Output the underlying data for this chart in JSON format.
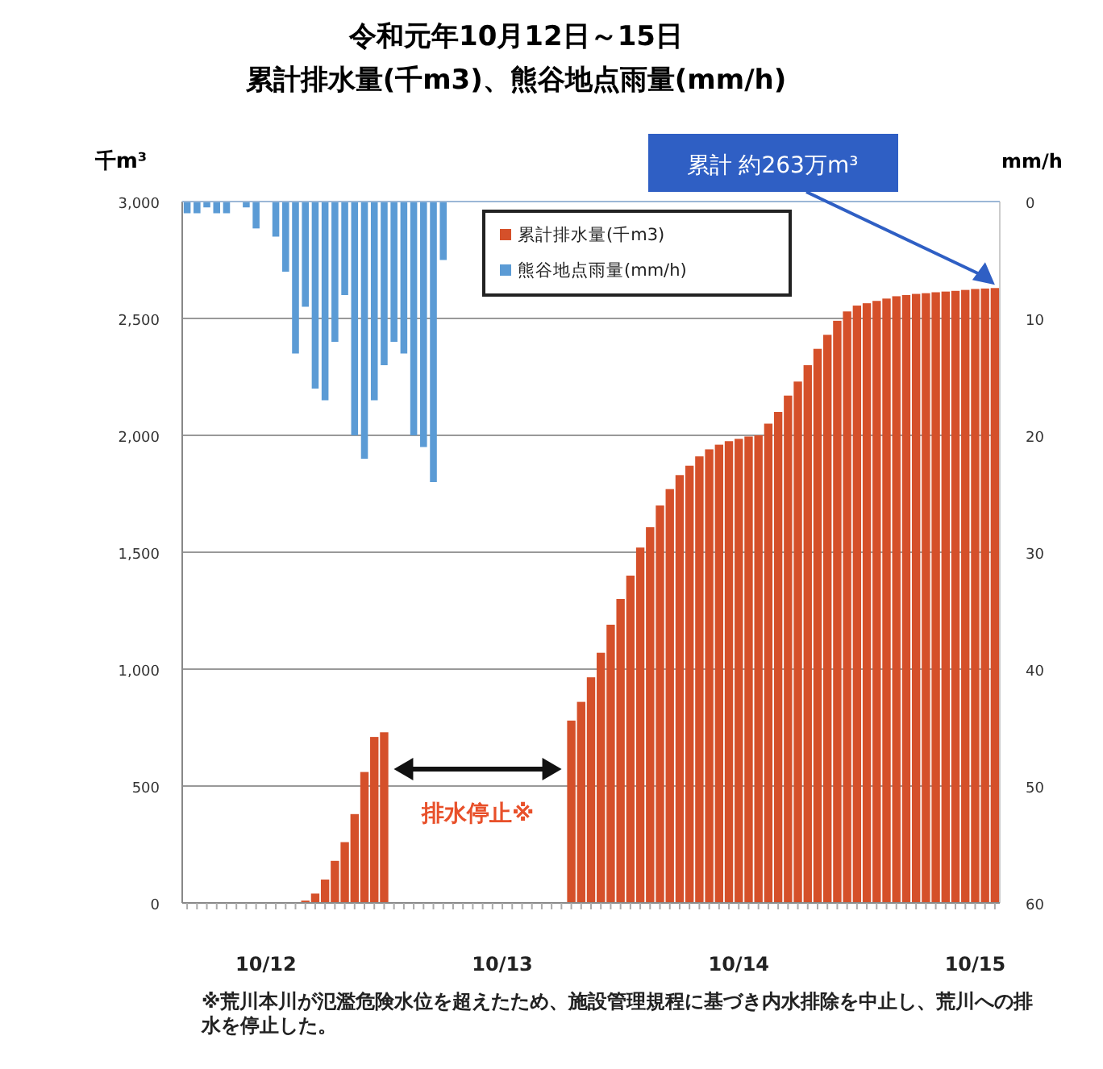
{
  "chart_data": {
    "type": "bar",
    "title": "令和元年10月12日～15日",
    "subtitle": "累計排水量(千m3)、熊谷地点雨量(mm/h)",
    "ylabel": "千m³",
    "y2label": "mm/h",
    "categories": [
      null,
      null,
      null,
      null,
      null,
      null,
      null,
      null,
      "10/12",
      null,
      null,
      null,
      null,
      null,
      null,
      null,
      null,
      null,
      null,
      null,
      null,
      null,
      null,
      null,
      null,
      null,
      null,
      null,
      null,
      null,
      null,
      null,
      "10/13",
      null,
      null,
      null,
      null,
      null,
      null,
      null,
      null,
      null,
      null,
      null,
      null,
      null,
      null,
      null,
      null,
      null,
      null,
      null,
      null,
      null,
      null,
      null,
      "10/14",
      null,
      null,
      null,
      null,
      null,
      null,
      null,
      null,
      null,
      null,
      null,
      null,
      null,
      null,
      null,
      null,
      null,
      null,
      null,
      null,
      null,
      null,
      null,
      "10/15",
      null,
      null
    ],
    "series": [
      {
        "name": "累計排水量(千m3)",
        "color": "#d5502a",
        "values": [
          null,
          null,
          null,
          null,
          null,
          null,
          null,
          null,
          null,
          null,
          null,
          null,
          10,
          40,
          100,
          180,
          260,
          380,
          560,
          710,
          730,
          null,
          null,
          null,
          null,
          null,
          null,
          null,
          null,
          null,
          null,
          null,
          null,
          null,
          null,
          null,
          null,
          null,
          null,
          780,
          860,
          965,
          1070,
          1190,
          1300,
          1400,
          1520,
          1607,
          1700,
          1770,
          1830,
          1870,
          1910,
          1940,
          1960,
          1975,
          1985,
          1995,
          2000,
          2050,
          2100,
          2170,
          2230,
          2300,
          2370,
          2430,
          2490,
          2530,
          2555,
          2565,
          2575,
          2585,
          2595,
          2600,
          2605,
          2608,
          2612,
          2615,
          2618,
          2622,
          2626,
          2628,
          2630
        ]
      },
      {
        "name": "熊谷地点雨量(mm/h)",
        "color": "#5b9bd5",
        "axis": "y2",
        "values": [
          1,
          1,
          0.5,
          1,
          1,
          0,
          0.5,
          2.3,
          0,
          3,
          6,
          13,
          9,
          16,
          17,
          12,
          8,
          20,
          22,
          17,
          14,
          12,
          13,
          20,
          21,
          24,
          5,
          null,
          null,
          null,
          null,
          null,
          null,
          null,
          null,
          null,
          null,
          null,
          null,
          null,
          null,
          null,
          null,
          null,
          null,
          null,
          null,
          null,
          null,
          null,
          null,
          null,
          null,
          null,
          null,
          null,
          null,
          null,
          null,
          null,
          null,
          null,
          null,
          null,
          null,
          null,
          null,
          null,
          null,
          null,
          null,
          null,
          null,
          null,
          null,
          null,
          null,
          null,
          null,
          null,
          null,
          null,
          null
        ]
      }
    ],
    "ylim": [
      0,
      3000
    ],
    "yticks": [
      0,
      {
        "value": 500,
        "label": "500"
      },
      {
        "value": 1000,
        "label": "1,000"
      },
      {
        "value": 1500,
        "label": "1,500"
      },
      {
        "value": 2000,
        "label": "2,000"
      },
      {
        "value": 2500,
        "label": "2,500"
      },
      {
        "value": 3000,
        "label": "3,000"
      }
    ],
    "y2lim": [
      60,
      0
    ],
    "y2ticks": [
      0,
      10,
      20,
      30,
      40,
      50,
      60
    ],
    "grid": "y",
    "legend": "top",
    "annotations": [
      "累計 約263万m³",
      "排水停止※",
      "※荒川本川が氾濫危険水位を超えたため、施設管理規程に基づき内水排除を中止し、荒川への排水を停止した。"
    ]
  }
}
